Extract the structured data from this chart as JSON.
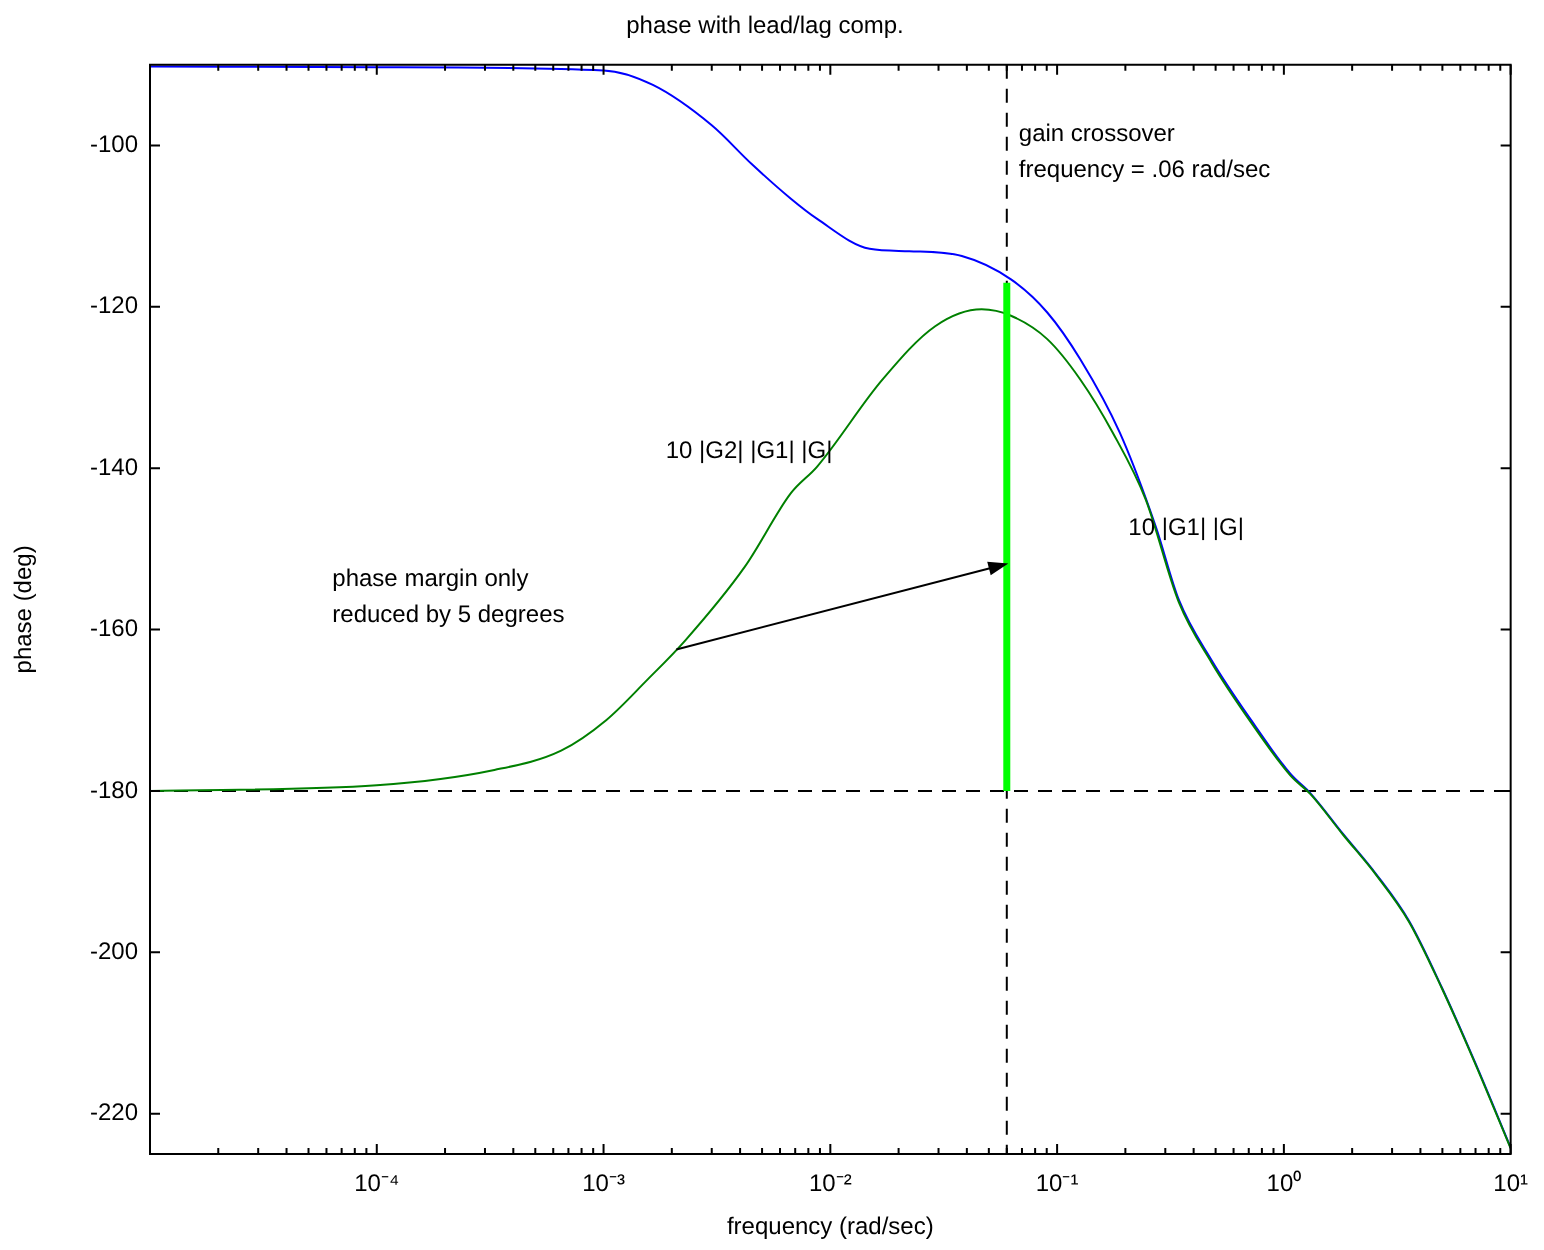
{
  "chart_data": {
    "type": "line",
    "title": "phase with lead/lag comp.",
    "xlabel": "frequency (rad/sec)",
    "ylabel": "phase (deg)",
    "log": "x",
    "xlim": [
      1e-05,
      10
    ],
    "ylim": [
      -225,
      -90
    ],
    "xticks": [
      {
        "value": 2e-05,
        "label": null
      },
      {
        "value": 3e-05,
        "label": null
      },
      {
        "value": 4e-05,
        "label": null
      },
      {
        "value": 5e-05,
        "label": null
      },
      {
        "value": 6e-05,
        "label": null
      },
      {
        "value": 7e-05,
        "label": null
      },
      {
        "value": 8e-05,
        "label": null
      },
      {
        "value": 9e-05,
        "label": null
      },
      {
        "value": 0.0001,
        "label": "10⁻⁴"
      },
      {
        "value": 0.0002,
        "label": null
      },
      {
        "value": 0.0003,
        "label": null
      },
      {
        "value": 0.0004,
        "label": null
      },
      {
        "value": 0.0005,
        "label": null
      },
      {
        "value": 0.0006,
        "label": null
      },
      {
        "value": 0.0007,
        "label": null
      },
      {
        "value": 0.0008,
        "label": null
      },
      {
        "value": 0.0009,
        "label": null
      },
      {
        "value": 0.001,
        "label": "10⁻³"
      },
      {
        "value": 0.002,
        "label": null
      },
      {
        "value": 0.003,
        "label": null
      },
      {
        "value": 0.004,
        "label": null
      },
      {
        "value": 0.005,
        "label": null
      },
      {
        "value": 0.006,
        "label": null
      },
      {
        "value": 0.007,
        "label": null
      },
      {
        "value": 0.008,
        "label": null
      },
      {
        "value": 0.009,
        "label": null
      },
      {
        "value": 0.01,
        "label": "10⁻²"
      },
      {
        "value": 0.02,
        "label": null
      },
      {
        "value": 0.03,
        "label": null
      },
      {
        "value": 0.04,
        "label": null
      },
      {
        "value": 0.05,
        "label": null
      },
      {
        "value": 0.06,
        "label": null
      },
      {
        "value": 0.07,
        "label": null
      },
      {
        "value": 0.08,
        "label": null
      },
      {
        "value": 0.09,
        "label": null
      },
      {
        "value": 0.1,
        "label": "10⁻¹"
      },
      {
        "value": 0.2,
        "label": null
      },
      {
        "value": 0.3,
        "label": null
      },
      {
        "value": 0.4,
        "label": null
      },
      {
        "value": 0.5,
        "label": null
      },
      {
        "value": 0.6,
        "label": null
      },
      {
        "value": 0.7,
        "label": null
      },
      {
        "value": 0.8,
        "label": null
      },
      {
        "value": 0.9,
        "label": null
      },
      {
        "value": 1,
        "label": "10⁰"
      },
      {
        "value": 2,
        "label": null
      },
      {
        "value": 3,
        "label": null
      },
      {
        "value": 4,
        "label": null
      },
      {
        "value": 5,
        "label": null
      },
      {
        "value": 6,
        "label": null
      },
      {
        "value": 7,
        "label": null
      },
      {
        "value": 8,
        "label": null
      },
      {
        "value": 9,
        "label": null
      },
      {
        "value": 10,
        "label": "10¹"
      }
    ],
    "yticks": [
      -220,
      -200,
      -180,
      -160,
      -140,
      -120,
      -100
    ],
    "marker": "none",
    "legend": false,
    "grid": false,
    "series": [
      {
        "name": "10 |G1| |G|",
        "color": "#0000ff",
        "x": [
          1e-05,
          0.0001,
          0.001,
          0.00165,
          0.003,
          0.0045,
          0.0067,
          0.00875,
          0.0149,
          0.0223,
          0.038,
          0.0626,
          0.0905,
          0.1265,
          0.189,
          0.272,
          0.344,
          0.48,
          0.716,
          1.07,
          1.31,
          1.82,
          2.55,
          3.56,
          4.96,
          6.93,
          10
        ],
        "values": [
          -90.2,
          -90.3,
          -90.7,
          -92.5,
          -97.5,
          -102.3,
          -106.6,
          -109.1,
          -112.8,
          -113.1,
          -113.7,
          -116.6,
          -120.7,
          -126.5,
          -135.6,
          -147.2,
          -156.3,
          -163.8,
          -171.2,
          -177.9,
          -180.3,
          -185.3,
          -190.3,
          -196.1,
          -204.3,
          -213.5,
          -224.2
        ]
      },
      {
        "name": "10 |G2| |G1| |G|",
        "color": "#008000",
        "x": [
          1e-05,
          0.0001,
          0.00033,
          0.00065,
          0.00103,
          0.00155,
          0.0023,
          0.0042,
          0.0067,
          0.00875,
          0.017,
          0.029,
          0.0465,
          0.0626,
          0.0905,
          0.1265,
          0.176,
          0.246,
          0.344,
          0.48,
          0.716,
          1.07,
          1.31,
          1.82,
          2.55,
          3.56,
          4.96,
          6.93,
          10
        ],
        "values": [
          -180,
          -179.3,
          -177.4,
          -175,
          -171.2,
          -166.3,
          -161.3,
          -152.2,
          -143.1,
          -139.8,
          -129,
          -122.4,
          -120.3,
          -121.1,
          -124,
          -129,
          -135.6,
          -143.9,
          -156.6,
          -164.1,
          -171.5,
          -178.1,
          -180.4,
          -185.4,
          -190.4,
          -196.2,
          -204.4,
          -213.6,
          -224.3
        ]
      },
      {
        "color": "#00ff00",
        "x": [
          0.06,
          0.06
        ],
        "values": [
          -180,
          -117
        ]
      }
    ],
    "ref_lines": [
      {
        "axis": "x",
        "value": 0.06,
        "label": "gain crossover\nfrequency = .06 rad/sec",
        "color": "#000000",
        "line_style": "dashed"
      },
      {
        "axis": "y",
        "value": -180,
        "color": "#000000",
        "line_style": "dashed"
      }
    ],
    "annotations": [
      "phase margin only\nreduced by 5 degrees"
    ]
  }
}
